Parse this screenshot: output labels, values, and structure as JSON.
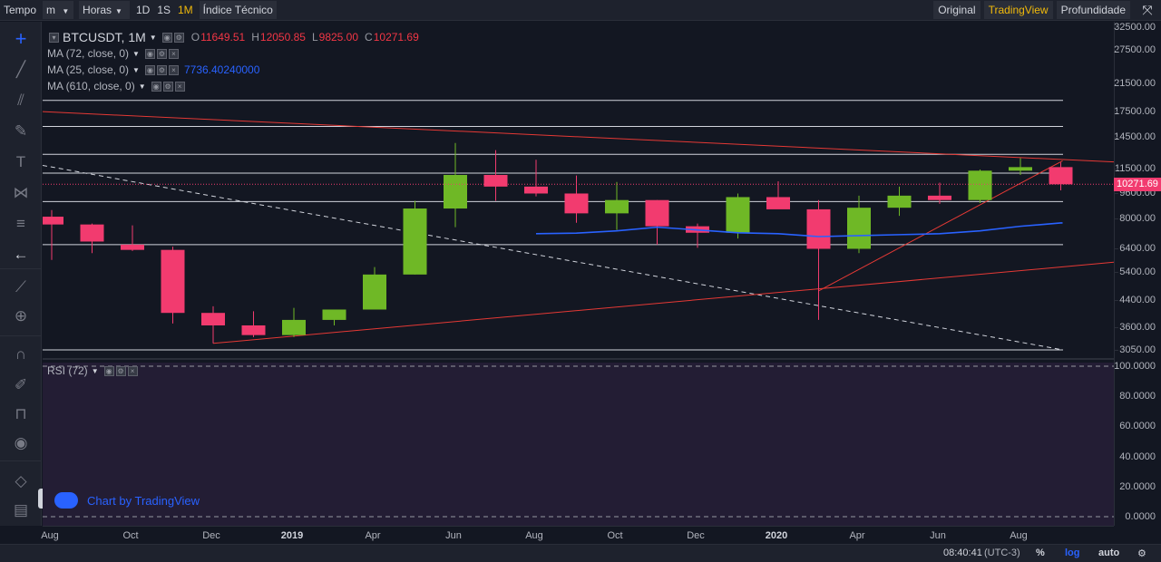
{
  "topbar": {
    "tempo_label": "Tempo",
    "interval_select": "m",
    "hours_select": "Horas",
    "intervals": [
      "1D",
      "1S",
      "1M"
    ],
    "selected_interval": "1M",
    "indicator_label": "Índice Técnico",
    "views": [
      "Original",
      "TradingView",
      "Profundidade"
    ],
    "selected_view": "TradingView"
  },
  "legend": {
    "symbol": "BTCUSDT, 1M",
    "open_key": "O",
    "open": "11649.51",
    "high_key": "H",
    "high": "12050.85",
    "low_key": "L",
    "low": "9825.00",
    "close_key": "C",
    "close": "10271.69",
    "ma1": "MA (72, close, 0)",
    "ma2": "MA (25, close, 0)",
    "ma2_value": "7736.40240000",
    "ma3": "MA (610, close, 0)",
    "rsi": "RSI (72)"
  },
  "colors": {
    "up": "#6fb826",
    "down": "#f23b6f",
    "ma": "#2962ff",
    "trend": "#e53935",
    "accent": "#f0b90b"
  },
  "price_axis": {
    "labels": [
      "32500.00",
      "27500.00",
      "21500.00",
      "17500.00",
      "14500.00",
      "11500.00",
      "9600.00",
      "8000.00",
      "6400.00",
      "5400.00",
      "4400.00",
      "3600.00",
      "3050.00"
    ],
    "values": [
      32500,
      27500,
      21500,
      17500,
      14500,
      11500,
      9600,
      8000,
      6400,
      5400,
      4400,
      3600,
      3050
    ],
    "last_price": "10271.69"
  },
  "rsi_axis": {
    "labels": [
      "100.0000",
      "80.0000",
      "60.0000",
      "40.0000",
      "20.0000",
      "0.0000"
    ],
    "values": [
      100,
      80,
      60,
      40,
      20,
      0
    ]
  },
  "time_axis": [
    "Aug",
    "Oct",
    "Dec",
    "2019",
    "Apr",
    "Jun",
    "Aug",
    "Oct",
    "Dec",
    "2020",
    "Apr",
    "Jun",
    "Aug"
  ],
  "chart_data": {
    "type": "candlestick",
    "title": "BTCUSDT, 1M",
    "scale": "log",
    "ylim": [
      3050,
      32500
    ],
    "x": [
      "2018-08",
      "2018-09",
      "2018-10",
      "2018-11",
      "2018-12",
      "2019-01",
      "2019-02",
      "2019-03",
      "2019-04",
      "2019-05",
      "2019-06",
      "2019-07",
      "2019-08",
      "2019-09",
      "2019-10",
      "2019-11",
      "2019-12",
      "2020-01",
      "2020-02",
      "2020-03",
      "2020-04",
      "2020-05",
      "2020-06",
      "2020-07",
      "2020-08",
      "2020-09"
    ],
    "candles": [
      {
        "o": 8100,
        "h": 8500,
        "l": 5900,
        "c": 7650
      },
      {
        "o": 7650,
        "h": 7700,
        "l": 6200,
        "c": 6750
      },
      {
        "o": 6600,
        "h": 7600,
        "l": 6300,
        "c": 6350
      },
      {
        "o": 6350,
        "h": 6500,
        "l": 3700,
        "c": 4000
      },
      {
        "o": 4000,
        "h": 4200,
        "l": 3200,
        "c": 3650
      },
      {
        "o": 3650,
        "h": 4050,
        "l": 3350,
        "c": 3400
      },
      {
        "o": 3400,
        "h": 4150,
        "l": 3350,
        "c": 3800
      },
      {
        "o": 3800,
        "h": 4100,
        "l": 3650,
        "c": 4100
      },
      {
        "o": 4100,
        "h": 5600,
        "l": 4100,
        "c": 5300
      },
      {
        "o": 5300,
        "h": 9100,
        "l": 5300,
        "c": 8600
      },
      {
        "o": 8600,
        "h": 13900,
        "l": 7500,
        "c": 11000
      },
      {
        "o": 11000,
        "h": 13200,
        "l": 9100,
        "c": 10100
      },
      {
        "o": 10100,
        "h": 12300,
        "l": 9400,
        "c": 9600
      },
      {
        "o": 9600,
        "h": 10950,
        "l": 7750,
        "c": 8300
      },
      {
        "o": 8300,
        "h": 10450,
        "l": 7350,
        "c": 9150
      },
      {
        "o": 9150,
        "h": 9150,
        "l": 6600,
        "c": 7550
      },
      {
        "o": 7550,
        "h": 7700,
        "l": 6450,
        "c": 7200
      },
      {
        "o": 7200,
        "h": 9600,
        "l": 6900,
        "c": 9350
      },
      {
        "o": 9350,
        "h": 10500,
        "l": 8600,
        "c": 8550
      },
      {
        "o": 8550,
        "h": 9150,
        "l": 3800,
        "c": 6400
      },
      {
        "o": 6400,
        "h": 9450,
        "l": 6200,
        "c": 8650
      },
      {
        "o": 8650,
        "h": 10100,
        "l": 8150,
        "c": 9450
      },
      {
        "o": 9450,
        "h": 10400,
        "l": 8900,
        "c": 9150
      },
      {
        "o": 9150,
        "h": 11450,
        "l": 8950,
        "c": 11350
      },
      {
        "o": 11350,
        "h": 12450,
        "l": 11000,
        "c": 11650
      },
      {
        "o": 11650,
        "h": 12050,
        "l": 9825,
        "c": 10271.69
      }
    ],
    "ma_25": [
      null,
      null,
      null,
      null,
      null,
      null,
      null,
      null,
      null,
      null,
      null,
      null,
      7150,
      7180,
      7300,
      7500,
      7350,
      7200,
      7150,
      7000,
      7050,
      7100,
      7150,
      7300,
      7550,
      7736.4
    ],
    "horizontal_levels": [
      19000,
      15700,
      12800,
      11150,
      9050,
      6600,
      3050
    ],
    "rsi_levels": [
      100,
      0
    ]
  },
  "watermark": "Chart by TradingView",
  "bottombar": {
    "time": "08:40:41",
    "tz": "(UTC-3)",
    "percent": "%",
    "log": "log",
    "auto": "auto"
  }
}
